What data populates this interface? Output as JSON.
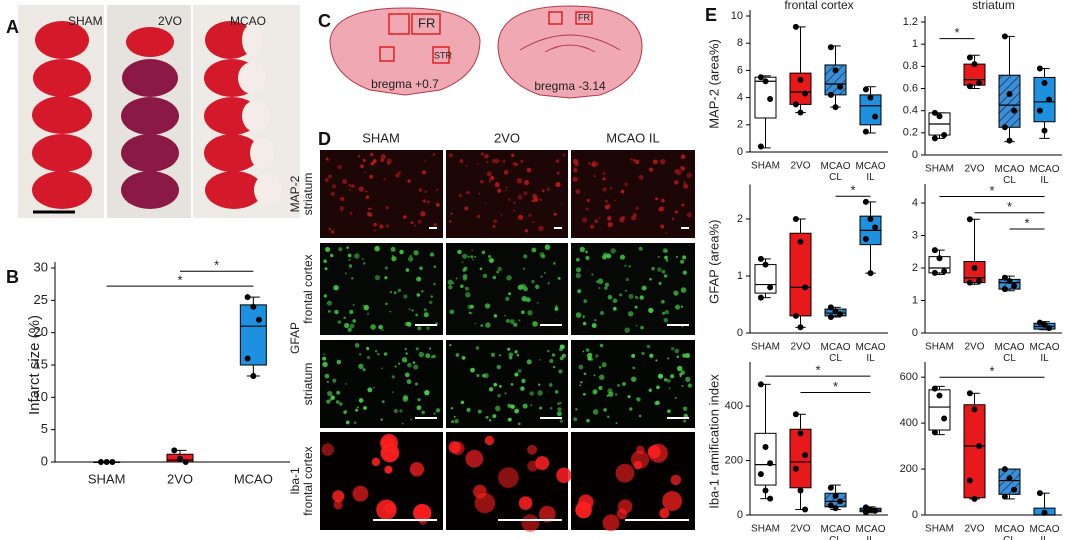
{
  "panels": {
    "letters": [
      "A",
      "B",
      "C",
      "D",
      "E"
    ],
    "a_labels": [
      "SHAM",
      "2VO",
      "MCAO"
    ],
    "c_texts": {
      "fr1": "FR",
      "str": "STR",
      "fr2": "FR",
      "bregma1": "bregma +0.7",
      "bregma2": "bregma -3.14"
    },
    "d_columns": [
      "SHAM",
      "2VO",
      "MCAO IL"
    ],
    "d_rows": {
      "map2": "MAP-2",
      "map2_region": "striatum",
      "gfap": "GFAP",
      "gfap_region1": "frontal cortex",
      "gfap_region2": "striatum",
      "iba": "Iba-1",
      "iba_region": "frontal cortex"
    }
  },
  "chart_data": [
    {
      "type": "box",
      "ylabel": "Infarct size (%)",
      "categories": [
        "SHAM",
        "2VO",
        "MCAO"
      ],
      "colors": [
        "#ffffff",
        "#e8191b",
        "#1e90e0"
      ],
      "hatch": [
        false,
        false,
        false
      ],
      "ylim": [
        0,
        30
      ],
      "yticks": [
        0,
        5,
        10,
        15,
        20,
        25,
        30
      ],
      "boxes": [
        {
          "min": 0,
          "q1": 0,
          "median": 0,
          "q3": 0,
          "max": 0,
          "points": [
            0,
            0,
            0
          ]
        },
        {
          "min": 0,
          "q1": 0,
          "median": 0.3,
          "q3": 1.2,
          "max": 1.8,
          "points": [
            1.8,
            0.5,
            0
          ]
        },
        {
          "min": 13.3,
          "q1": 15,
          "median": 21,
          "q3": 24.3,
          "max": 25.5,
          "points": [
            25.5,
            24,
            22,
            16,
            13.3
          ]
        }
      ],
      "significance": [
        {
          "from": 1,
          "to": 2,
          "y": 29.5,
          "label": "*"
        },
        {
          "from": 0,
          "to": 2,
          "y": 27.2,
          "label": "*"
        }
      ]
    },
    {
      "type": "box",
      "title": "frontal cortex",
      "ylabel": "MAP-2 (area%)",
      "categories": [
        "SHAM",
        "2VO",
        "MCAO CL",
        "MCAO IL"
      ],
      "colors": [
        "#ffffff",
        "#e8191b",
        "#3a8fd6",
        "#1e90e0"
      ],
      "hatch": [
        false,
        false,
        true,
        false
      ],
      "ylim": [
        0,
        10
      ],
      "yticks": [
        0,
        2,
        4,
        6,
        8,
        10
      ],
      "boxes": [
        {
          "min": 0.3,
          "q1": 2.5,
          "median": 5.2,
          "q3": 5.5,
          "max": 5.6,
          "points": [
            5.5,
            5.2,
            3.9,
            0.4
          ]
        },
        {
          "min": 2.9,
          "q1": 3.5,
          "median": 4.4,
          "q3": 5.8,
          "max": 9.2,
          "points": [
            9.2,
            5.3,
            4.3,
            3.5,
            2.9
          ]
        },
        {
          "min": 3.3,
          "q1": 4.2,
          "median": 5.0,
          "q3": 6.4,
          "max": 7.8,
          "points": [
            7.7,
            6.0,
            4.8,
            4.2,
            3.3
          ]
        },
        {
          "min": 1.4,
          "q1": 2.0,
          "median": 3.4,
          "q3": 4.2,
          "max": 4.8,
          "points": [
            4.6,
            4.0,
            2.6,
            1.5
          ]
        }
      ],
      "significance": []
    },
    {
      "type": "box",
      "title": "striatum",
      "categories": [
        "SHAM",
        "2VO",
        "MCAO CL",
        "MCAO IL"
      ],
      "colors": [
        "#ffffff",
        "#e8191b",
        "#3a8fd6",
        "#1e90e0"
      ],
      "hatch": [
        false,
        false,
        true,
        false
      ],
      "ylim": [
        0,
        1.2
      ],
      "yticks": [
        0,
        0.2,
        0.4,
        0.6,
        0.8,
        1,
        1.2
      ],
      "boxes": [
        {
          "min": 0.15,
          "q1": 0.18,
          "median": 0.28,
          "q3": 0.38,
          "max": 0.38,
          "points": [
            0.38,
            0.35,
            0.18,
            0.15
          ]
        },
        {
          "min": 0.6,
          "q1": 0.63,
          "median": 0.68,
          "q3": 0.82,
          "max": 0.9,
          "points": [
            0.88,
            0.82,
            0.65,
            0.62
          ]
        },
        {
          "min": 0.12,
          "q1": 0.25,
          "median": 0.45,
          "q3": 0.72,
          "max": 1.07,
          "points": [
            1.07,
            0.55,
            0.4,
            0.25,
            0.13
          ]
        },
        {
          "min": 0.15,
          "q1": 0.3,
          "median": 0.48,
          "q3": 0.7,
          "max": 0.78,
          "points": [
            0.78,
            0.65,
            0.5,
            0.4,
            0.22
          ]
        }
      ],
      "significance": [
        {
          "from": 0,
          "to": 1,
          "y": 1.05,
          "label": "*"
        }
      ]
    },
    {
      "type": "box",
      "ylabel": "GFAP (area%)",
      "categories": [
        "SHAM",
        "2VO",
        "MCAO CL",
        "MCAO IL"
      ],
      "colors": [
        "#ffffff",
        "#e8191b",
        "#3a8fd6",
        "#1e90e0"
      ],
      "hatch": [
        false,
        false,
        true,
        false
      ],
      "ylim": [
        0,
        2.5
      ],
      "yticks": [
        0,
        1,
        2
      ],
      "boxes": [
        {
          "min": 0.62,
          "q1": 0.7,
          "median": 0.85,
          "q3": 1.2,
          "max": 1.3,
          "points": [
            1.3,
            1.2,
            0.8,
            0.62
          ]
        },
        {
          "min": 0.1,
          "q1": 0.3,
          "median": 0.8,
          "q3": 1.75,
          "max": 2.0,
          "points": [
            2.0,
            1.6,
            0.8,
            0.3,
            0.1
          ]
        },
        {
          "min": 0.28,
          "q1": 0.3,
          "median": 0.35,
          "q3": 0.42,
          "max": 0.45,
          "points": [
            0.45,
            0.38,
            0.33,
            0.28
          ]
        },
        {
          "min": 1.05,
          "q1": 1.55,
          "median": 1.8,
          "q3": 2.05,
          "max": 2.3,
          "points": [
            2.3,
            2.0,
            1.85,
            1.65,
            1.05
          ]
        }
      ],
      "significance": [
        {
          "from": 2,
          "to": 3,
          "y": 2.4,
          "label": "*"
        }
      ]
    },
    {
      "type": "box",
      "categories": [
        "SHAM",
        "2VO",
        "MCAO CL",
        "MCAO IL"
      ],
      "colors": [
        "#ffffff",
        "#e8191b",
        "#3a8fd6",
        "#1e90e0"
      ],
      "hatch": [
        false,
        false,
        true,
        false
      ],
      "ylim": [
        0,
        4.4
      ],
      "yticks": [
        0,
        1,
        2,
        3,
        4
      ],
      "boxes": [
        {
          "min": 1.8,
          "q1": 1.85,
          "median": 2.0,
          "q3": 2.35,
          "max": 2.55,
          "points": [
            2.55,
            2.3,
            1.9,
            1.85
          ]
        },
        {
          "min": 1.5,
          "q1": 1.55,
          "median": 1.7,
          "q3": 2.2,
          "max": 3.5,
          "points": [
            3.5,
            2.0,
            1.6,
            1.55
          ]
        },
        {
          "min": 1.3,
          "q1": 1.35,
          "median": 1.55,
          "q3": 1.65,
          "max": 1.75,
          "points": [
            1.7,
            1.6,
            1.45,
            1.35
          ]
        },
        {
          "min": 0.1,
          "q1": 0.12,
          "median": 0.2,
          "q3": 0.3,
          "max": 0.35,
          "points": [
            0.32,
            0.25,
            0.15
          ]
        }
      ],
      "significance": [
        {
          "from": 0,
          "to": 3,
          "y": 4.2,
          "label": "*"
        },
        {
          "from": 1,
          "to": 3,
          "y": 3.7,
          "label": "*"
        },
        {
          "from": 2,
          "to": 3,
          "y": 3.2,
          "label": "*"
        }
      ]
    },
    {
      "type": "box",
      "ylabel": "Iba-1 ramification index",
      "categories": [
        "SHAM",
        "2VO",
        "MCAO CL",
        "MCAO IL"
      ],
      "colors": [
        "#ffffff",
        "#e8191b",
        "#3a8fd6",
        "#1e90e0"
      ],
      "hatch": [
        false,
        false,
        true,
        false
      ],
      "ylim": [
        0,
        540
      ],
      "yticks": [
        0,
        200,
        400
      ],
      "boxes": [
        {
          "min": 60,
          "q1": 110,
          "median": 185,
          "q3": 300,
          "max": 480,
          "points": [
            480,
            250,
            190,
            150,
            90,
            60
          ]
        },
        {
          "min": 20,
          "q1": 100,
          "median": 195,
          "q3": 315,
          "max": 370,
          "points": [
            370,
            300,
            220,
            170,
            90,
            20
          ]
        },
        {
          "min": 20,
          "q1": 30,
          "median": 50,
          "q3": 80,
          "max": 110,
          "points": [
            100,
            70,
            50,
            35,
            25
          ]
        },
        {
          "min": 8,
          "q1": 12,
          "median": 18,
          "q3": 25,
          "max": 30,
          "points": [
            28,
            20,
            15,
            10
          ]
        }
      ],
      "significance": [
        {
          "from": 0,
          "to": 3,
          "y": 510,
          "label": "*"
        },
        {
          "from": 1,
          "to": 3,
          "y": 450,
          "label": "*"
        }
      ]
    },
    {
      "type": "box",
      "categories": [
        "SHAM",
        "2VO",
        "MCAO CL",
        "MCAO IL"
      ],
      "colors": [
        "#ffffff",
        "#e8191b",
        "#3a8fd6",
        "#1e90e0"
      ],
      "hatch": [
        false,
        false,
        true,
        false
      ],
      "ylim": [
        0,
        640
      ],
      "yticks": [
        0,
        200,
        400,
        600
      ],
      "boxes": [
        {
          "min": 350,
          "q1": 370,
          "median": 470,
          "q3": 545,
          "max": 560,
          "points": [
            550,
            520,
            420,
            360
          ]
        },
        {
          "min": 70,
          "q1": 75,
          "median": 300,
          "q3": 480,
          "max": 530,
          "points": [
            530,
            460,
            300,
            150,
            70
          ]
        },
        {
          "min": 70,
          "q1": 90,
          "median": 150,
          "q3": 200,
          "max": 200,
          "points": [
            200,
            160,
            110,
            80
          ]
        },
        {
          "min": 0,
          "q1": 0,
          "median": 0,
          "q3": 30,
          "max": 95,
          "points": [
            95,
            10
          ]
        }
      ],
      "significance": [
        {
          "from": 0,
          "to": 3,
          "y": 600,
          "label": "*"
        }
      ]
    }
  ]
}
